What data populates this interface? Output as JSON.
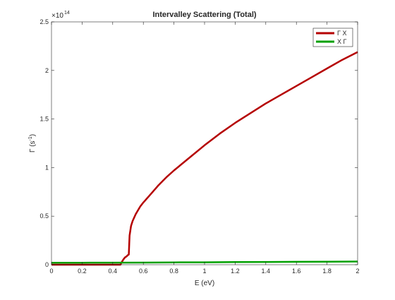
{
  "chart_data": {
    "type": "line",
    "title": "Intervalley Scattering (Total)",
    "xlabel": "E (eV)",
    "ylabel": "Γ (s⁻¹)",
    "ylabel_base": "Γ (s",
    "ylabel_exp": "-1",
    "ylabel_tail": ")",
    "y_multiplier": "×10",
    "y_multiplier_exp": "14",
    "xlim": [
      0,
      2
    ],
    "ylim": [
      0,
      2.5
    ],
    "x_ticks": [
      "0",
      "0.2",
      "0.4",
      "0.6",
      "0.8",
      "1",
      "1.2",
      "1.4",
      "1.6",
      "1.8",
      "2"
    ],
    "y_ticks": [
      "0",
      "0.5",
      "1",
      "1.5",
      "2",
      "2.5"
    ],
    "grid": false,
    "legend_position": "top-right",
    "series": [
      {
        "name": "Γ X",
        "color": "#b50000",
        "x": [
          0,
          0.1,
          0.2,
          0.3,
          0.4,
          0.45,
          0.46,
          0.47,
          0.48,
          0.49,
          0.5,
          0.505,
          0.51,
          0.52,
          0.53,
          0.55,
          0.58,
          0.6,
          0.65,
          0.7,
          0.75,
          0.8,
          0.9,
          1.0,
          1.1,
          1.2,
          1.3,
          1.4,
          1.5,
          1.6,
          1.7,
          1.8,
          1.9,
          2.0
        ],
        "y": [
          0.0,
          0.0,
          0.0,
          0.0,
          0.0,
          0.0,
          0.03,
          0.055,
          0.075,
          0.085,
          0.1,
          0.105,
          0.3,
          0.4,
          0.45,
          0.52,
          0.6,
          0.64,
          0.73,
          0.82,
          0.9,
          0.97,
          1.1,
          1.23,
          1.35,
          1.46,
          1.56,
          1.66,
          1.75,
          1.84,
          1.93,
          2.02,
          2.11,
          2.19
        ]
      },
      {
        "name": "X Γ",
        "color": "#00a000",
        "x": [
          0,
          0.2,
          0.4,
          0.6,
          0.8,
          1.0,
          1.2,
          1.4,
          1.6,
          1.8,
          2.0
        ],
        "y": [
          0.02,
          0.02,
          0.021,
          0.022,
          0.024,
          0.025,
          0.027,
          0.028,
          0.03,
          0.031,
          0.033
        ]
      }
    ]
  }
}
